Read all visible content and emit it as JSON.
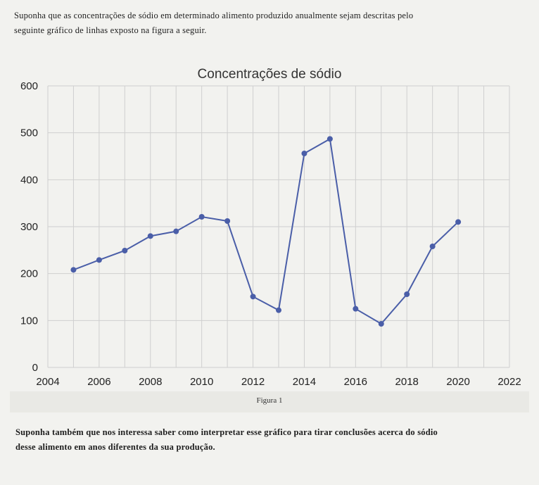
{
  "text": {
    "intro_line1": "Suponha que as concentrações de sódio em determinado alimento produzido anualmente sejam descritas pelo",
    "intro_line2": "seguinte gráfico de linhas exposto na figura a seguir.",
    "caption": "Figura 1",
    "outro_line1": "Suponha também que nos interessa saber como interpretar esse gráfico para tirar conclusões acerca do sódio",
    "outro_line2": "desse alimento em anos diferentes da sua produção."
  },
  "chart_data": {
    "type": "line",
    "title": "Concentrações de sódio",
    "xlabel": "",
    "ylabel": "",
    "xlim": [
      2004,
      2022
    ],
    "ylim": [
      0,
      600
    ],
    "x_ticks": [
      2004,
      2006,
      2008,
      2010,
      2012,
      2014,
      2016,
      2018,
      2020,
      2022
    ],
    "y_ticks": [
      0,
      100,
      200,
      300,
      400,
      500,
      600
    ],
    "grid": true,
    "series": [
      {
        "x": [
          2005,
          2006,
          2007,
          2008,
          2009,
          2010,
          2011,
          2012,
          2013,
          2014,
          2015,
          2016,
          2017,
          2018,
          2019,
          2020
        ],
        "y": [
          208,
          229,
          249,
          280,
          290,
          321,
          312,
          151,
          122,
          456,
          487,
          125,
          93,
          156,
          258,
          310
        ],
        "color": "#4a5ea8"
      }
    ]
  }
}
